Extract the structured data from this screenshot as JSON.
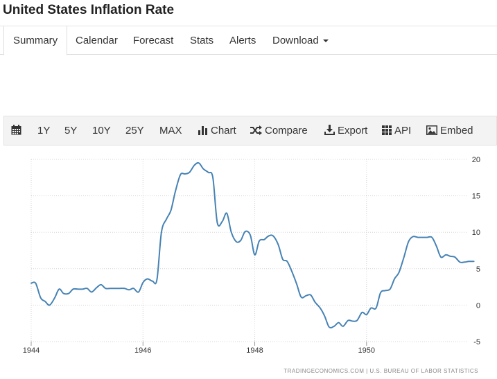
{
  "page": {
    "title": "United States Inflation Rate"
  },
  "tabs": [
    {
      "label": "Summary",
      "active": true
    },
    {
      "label": "Calendar"
    },
    {
      "label": "Forecast"
    },
    {
      "label": "Stats"
    },
    {
      "label": "Alerts"
    },
    {
      "label": "Download",
      "dropdown": true
    }
  ],
  "toolbar": {
    "ranges": [
      "1Y",
      "5Y",
      "10Y",
      "25Y",
      "MAX"
    ],
    "chart_label": "Chart",
    "compare_label": "Compare",
    "export_label": "Export",
    "api_label": "API",
    "embed_label": "Embed",
    "icons": [
      "calendar-icon",
      "bar-chart-icon",
      "shuffle-icon",
      "download-icon",
      "grid-icon",
      "image-icon"
    ]
  },
  "chart_data": {
    "type": "line",
    "xlim": [
      1944,
      1951.9
    ],
    "ylim": [
      -5,
      20
    ],
    "x_ticks": [
      "1944",
      "1946",
      "1948",
      "1950"
    ],
    "y_ticks": [
      "20",
      "15",
      "10",
      "5",
      "0",
      "-5"
    ],
    "grid": true,
    "line_color": "#4682b4",
    "source": "TRADINGECONOMICS.COM  |  U.S. BUREAU OF LABOR STATISTICS",
    "series": [
      {
        "x": [
          1944.0,
          1944.08,
          1944.17,
          1944.25,
          1944.33,
          1944.42,
          1944.5,
          1944.58,
          1944.67,
          1944.75,
          1944.83,
          1944.92,
          1945.0,
          1945.08,
          1945.17,
          1945.25,
          1945.33,
          1945.42,
          1945.5,
          1945.58,
          1945.67,
          1945.75,
          1945.83,
          1945.92,
          1946.0,
          1946.08,
          1946.17,
          1946.25,
          1946.33,
          1946.42,
          1946.5,
          1946.58,
          1946.67,
          1946.75,
          1946.83,
          1946.92,
          1947.0,
          1947.08,
          1947.17,
          1947.25,
          1947.33,
          1947.42,
          1947.5,
          1947.58,
          1947.67,
          1947.75,
          1947.83,
          1947.92,
          1948.0,
          1948.08,
          1948.17,
          1948.25,
          1948.33,
          1948.42,
          1948.5,
          1948.58,
          1948.67,
          1948.75,
          1948.83,
          1948.92,
          1949.0,
          1949.08,
          1949.17,
          1949.25,
          1949.33,
          1949.42,
          1949.5,
          1949.58,
          1949.67,
          1949.75,
          1949.83,
          1949.92,
          1950.0,
          1950.08,
          1950.17,
          1950.25,
          1950.33,
          1950.42,
          1950.5,
          1950.58,
          1950.67,
          1950.75,
          1950.83,
          1950.92,
          1951.0,
          1951.08,
          1951.17,
          1951.25,
          1951.33,
          1951.42,
          1951.5,
          1951.58,
          1951.67,
          1951.75,
          1951.83,
          1951.92
        ],
        "y": [
          3.0,
          3.0,
          1.0,
          0.5,
          0.0,
          1.0,
          2.2,
          1.6,
          1.6,
          2.2,
          2.2,
          2.2,
          2.3,
          1.8,
          2.4,
          2.8,
          2.3,
          2.3,
          2.3,
          2.3,
          2.3,
          2.1,
          2.3,
          1.8,
          3.1,
          3.6,
          3.3,
          3.5,
          10.0,
          11.8,
          13.0,
          15.6,
          17.9,
          18.0,
          18.2,
          19.2,
          19.5,
          18.7,
          18.2,
          17.5,
          11.3,
          11.5,
          12.6,
          10.0,
          8.7,
          8.9,
          10.1,
          9.6,
          6.9,
          8.8,
          9.0,
          9.5,
          9.5,
          8.3,
          6.3,
          6.0,
          4.5,
          2.9,
          1.1,
          1.3,
          1.4,
          0.4,
          -0.4,
          -1.5,
          -3.0,
          -2.9,
          -2.4,
          -2.9,
          -2.1,
          -2.2,
          -2.1,
          -1.0,
          -1.3,
          -0.4,
          -0.4,
          1.7,
          2.0,
          2.2,
          3.6,
          4.5,
          6.6,
          8.7,
          9.4,
          9.3,
          9.3,
          9.3,
          9.3,
          8.1,
          6.6,
          6.9,
          6.7,
          6.6,
          5.9,
          5.9,
          6.0,
          6.0
        ]
      }
    ]
  }
}
